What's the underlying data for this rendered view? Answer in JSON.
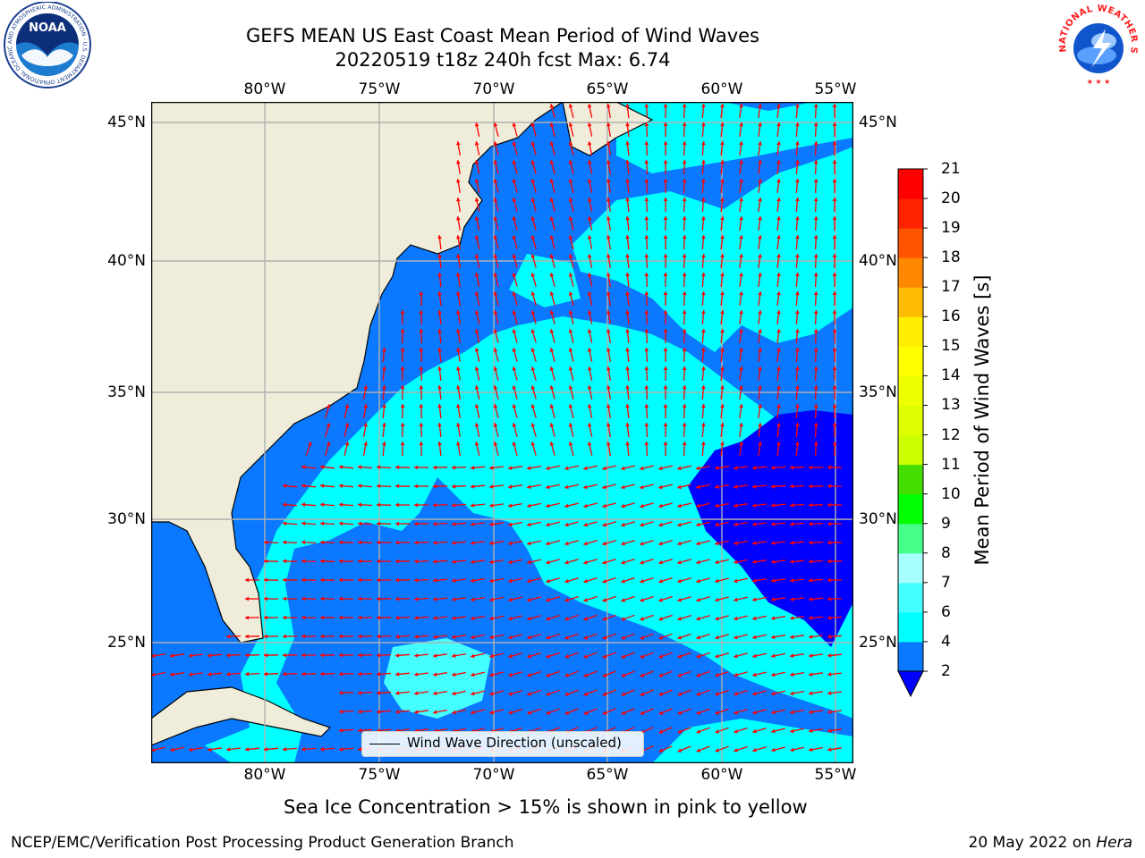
{
  "title": {
    "line1": "GEFS MEAN US East Coast Mean Period of Wind Waves",
    "line2": "20220519 t18z 240h fcst   Max: 6.74"
  },
  "map": {
    "lon_min": -85,
    "lon_max": -54.2,
    "lat_min": 20.2,
    "lat_max": 45.8,
    "lon_ticks": [
      {
        "v": -80,
        "label": "80°W"
      },
      {
        "v": -75,
        "label": "75°W"
      },
      {
        "v": -70,
        "label": "70°W"
      },
      {
        "v": -65,
        "label": "65°W"
      },
      {
        "v": -60,
        "label": "60°W"
      },
      {
        "v": -55,
        "label": "55°W"
      }
    ],
    "lat_ticks": [
      {
        "v": 45,
        "label": "45°N"
      },
      {
        "v": 40,
        "label": "40°N"
      },
      {
        "v": 35,
        "label": "35°N"
      },
      {
        "v": 30,
        "label": "30°N"
      },
      {
        "v": 25,
        "label": "25°N"
      }
    ],
    "land_color": "#efedda",
    "arrow_color": "#ff0000",
    "gridline_color": "#b0b0b0"
  },
  "colorbar": {
    "label": "Mean Period of Wind Waves [s]",
    "levels": [
      2,
      4,
      6,
      7,
      8,
      9,
      10,
      11,
      12,
      13,
      14,
      15,
      16,
      17,
      18,
      19,
      20,
      21
    ],
    "tick_labels": [
      "2",
      "4",
      "6",
      "7",
      "8",
      "9",
      "10",
      "11",
      "12",
      "13",
      "14",
      "15",
      "16",
      "17",
      "18",
      "19",
      "20",
      "21"
    ],
    "colors": [
      "#0a78ff",
      "#00ffff",
      "#44ffff",
      "#a8ffff",
      "#44ff88",
      "#00ff00",
      "#44dd00",
      "#ccff00",
      "#ddff00",
      "#eeff00",
      "#ffff00",
      "#ffee00",
      "#ffbb00",
      "#ff8800",
      "#ff5500",
      "#ff2200",
      "#ff0000"
    ],
    "under_color": "#0000ff"
  },
  "legend": {
    "label": "Wind Wave Direction (unscaled)"
  },
  "subtitle": "Sea Ice Concentration > 15% is shown in pink to yellow",
  "footer": {
    "left": "NCEP/EMC/Verification Post Processing Product Generation Branch",
    "right_date": "20 May 2022 on ",
    "right_machine": "Hera"
  },
  "logos": {
    "noaa": {
      "text": "NOAA",
      "ring_text": "NATIONAL OCEANIC AND ATMOSPHERIC ADMINISTRATION · U.S. DEPARTMENT OF COMMERCE"
    },
    "nws": {
      "ring_text": "NATIONAL WEATHER SERVICE"
    }
  }
}
